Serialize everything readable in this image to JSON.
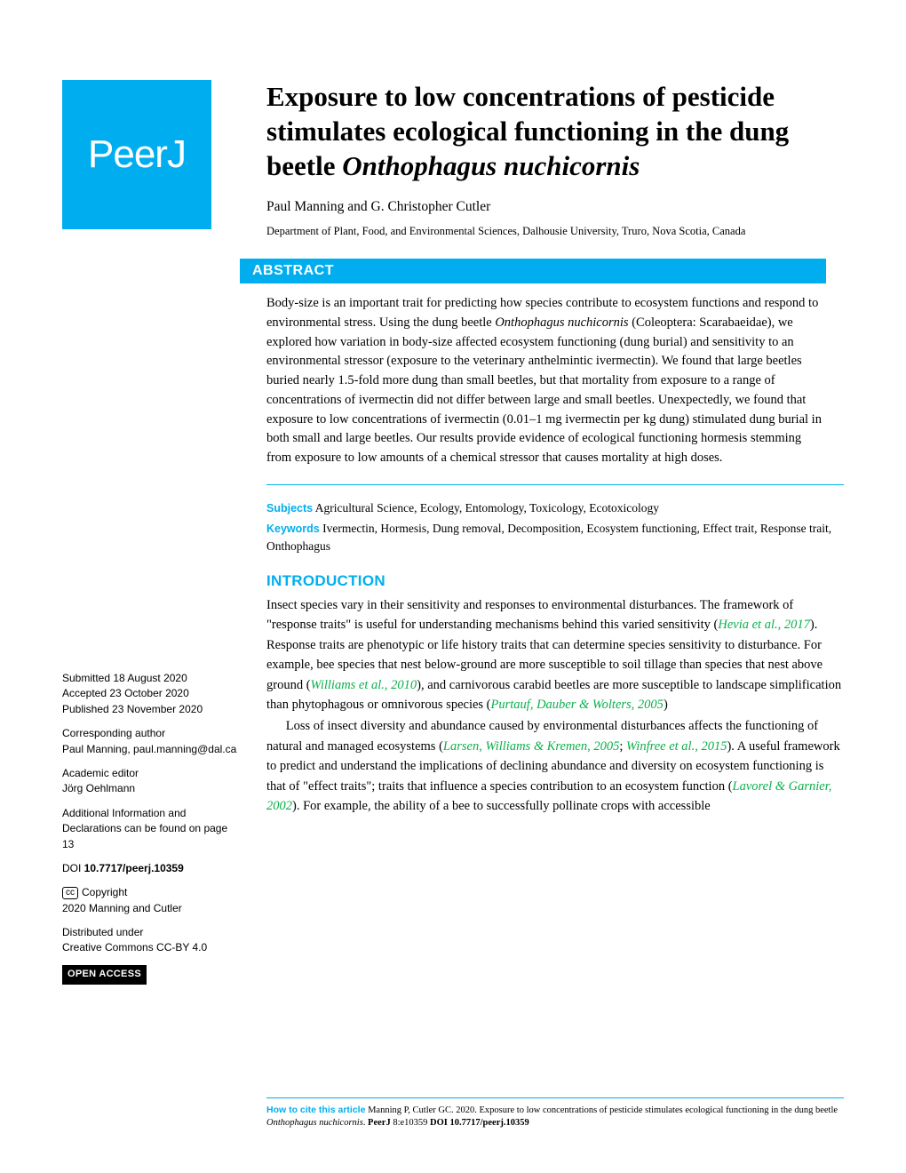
{
  "logo": {
    "text": "PeerJ"
  },
  "title": {
    "line1": "Exposure to low concentrations of pesticide stimulates ecological functioning in the dung beetle ",
    "italic1": "Onthophagus nuchicornis"
  },
  "authors": "Paul Manning and G. Christopher Cutler",
  "affiliation": "Department of Plant, Food, and Environmental Sciences, Dalhousie University, Truro, Nova Scotia, Canada",
  "abstract": {
    "header": "ABSTRACT",
    "pre1": "Body-size is an important trait for predicting how species contribute to ecosystem functions and respond to environmental stress. Using the dung beetle ",
    "italic1": "Onthophagus nuchicornis",
    "post1": " (Coleoptera: Scarabaeidae), we explored how variation in body-size affected ecosystem functioning (dung burial) and sensitivity to an environmental stressor (exposure to the veterinary anthelmintic ivermectin). We found that large beetles buried nearly 1.5-fold more dung than small beetles, but that mortality from exposure to a range of concentrations of ivermectin did not differ between large and small beetles. Unexpectedly, we found that exposure to low concentrations of ivermectin (0.01–1 mg ivermectin per kg dung) stimulated dung burial in both small and large beetles. Our results provide evidence of ecological functioning hormesis stemming from exposure to low amounts of a chemical stressor that causes mortality at high doses."
  },
  "subjects": {
    "label": "Subjects",
    "text": " Agricultural Science, Ecology, Entomology, Toxicology, Ecotoxicology"
  },
  "keywords": {
    "label": "Keywords",
    "text": " Ivermectin, Hormesis, Dung removal, Decomposition, Ecosystem functioning, Effect trait, Response trait, Onthophagus"
  },
  "intro": {
    "heading": "INTRODUCTION",
    "p1a": "Insect species vary in their sensitivity and responses to environmental disturbances. The framework of \"response traits\" is useful for understanding mechanisms behind this varied sensitivity (",
    "c1": "Hevia et al., 2017",
    "p1b": "). Response traits are phenotypic or life history traits that can determine species sensitivity to disturbance. For example, bee species that nest below-ground are more susceptible to soil tillage than species that nest above ground (",
    "c2": "Williams et al., 2010",
    "p1c": "), and carnivorous carabid beetles are more susceptible to landscape simplification than phytophagous or omnivorous species (",
    "c3": "Purtauf, Dauber & Wolters, 2005",
    "p1d": ")",
    "p2a": "Loss of insect diversity and abundance caused by environmental disturbances affects the functioning of natural and managed ecosystems (",
    "c4": "Larsen, Williams & Kremen, 2005",
    "p2b": "; ",
    "c5": "Winfree et al., 2015",
    "p2c": "). A useful framework to predict and understand the implications of declining abundance and diversity on ecosystem functioning is that of \"effect traits\"; traits that influence a species contribution to an ecosystem function (",
    "c6": "Lavorel & Garnier, 2002",
    "p2d": "). For example, the ability of a bee to successfully pollinate crops with accessible"
  },
  "sidebar": {
    "submitted_lbl": "Submitted",
    "submitted": " 18 August 2020",
    "accepted_lbl": "Accepted",
    "accepted": " 23 October 2020",
    "published_lbl": "Published",
    "published": " 23 November 2020",
    "corr_lbl": "Corresponding author",
    "corr": "Paul Manning, paul.manning@dal.ca",
    "editor_lbl": "Academic editor",
    "editor": "Jörg Oehlmann",
    "addl": "Additional Information and Declarations can be found on page 13",
    "doi_lbl": "DOI ",
    "doi": "10.7717/peerj.10359",
    "copyright_lbl": " Copyright",
    "copyright": "2020 Manning and Cutler",
    "dist_lbl": "Distributed under",
    "dist": "Creative Commons CC-BY 4.0",
    "oa": "OPEN ACCESS"
  },
  "footer": {
    "label": "How to cite this article",
    "text1": " Manning P, Cutler GC. 2020. Exposure to low concentrations of pesticide stimulates ecological functioning in the dung beetle ",
    "italic1": "Onthophagus nuchicornis",
    "text2": ". ",
    "journal": "PeerJ",
    "text3": " 8:e10359 ",
    "doi": "DOI 10.7717/peerj.10359"
  },
  "colors": {
    "brand": "#00aeef",
    "citation": "#0bb04c"
  }
}
